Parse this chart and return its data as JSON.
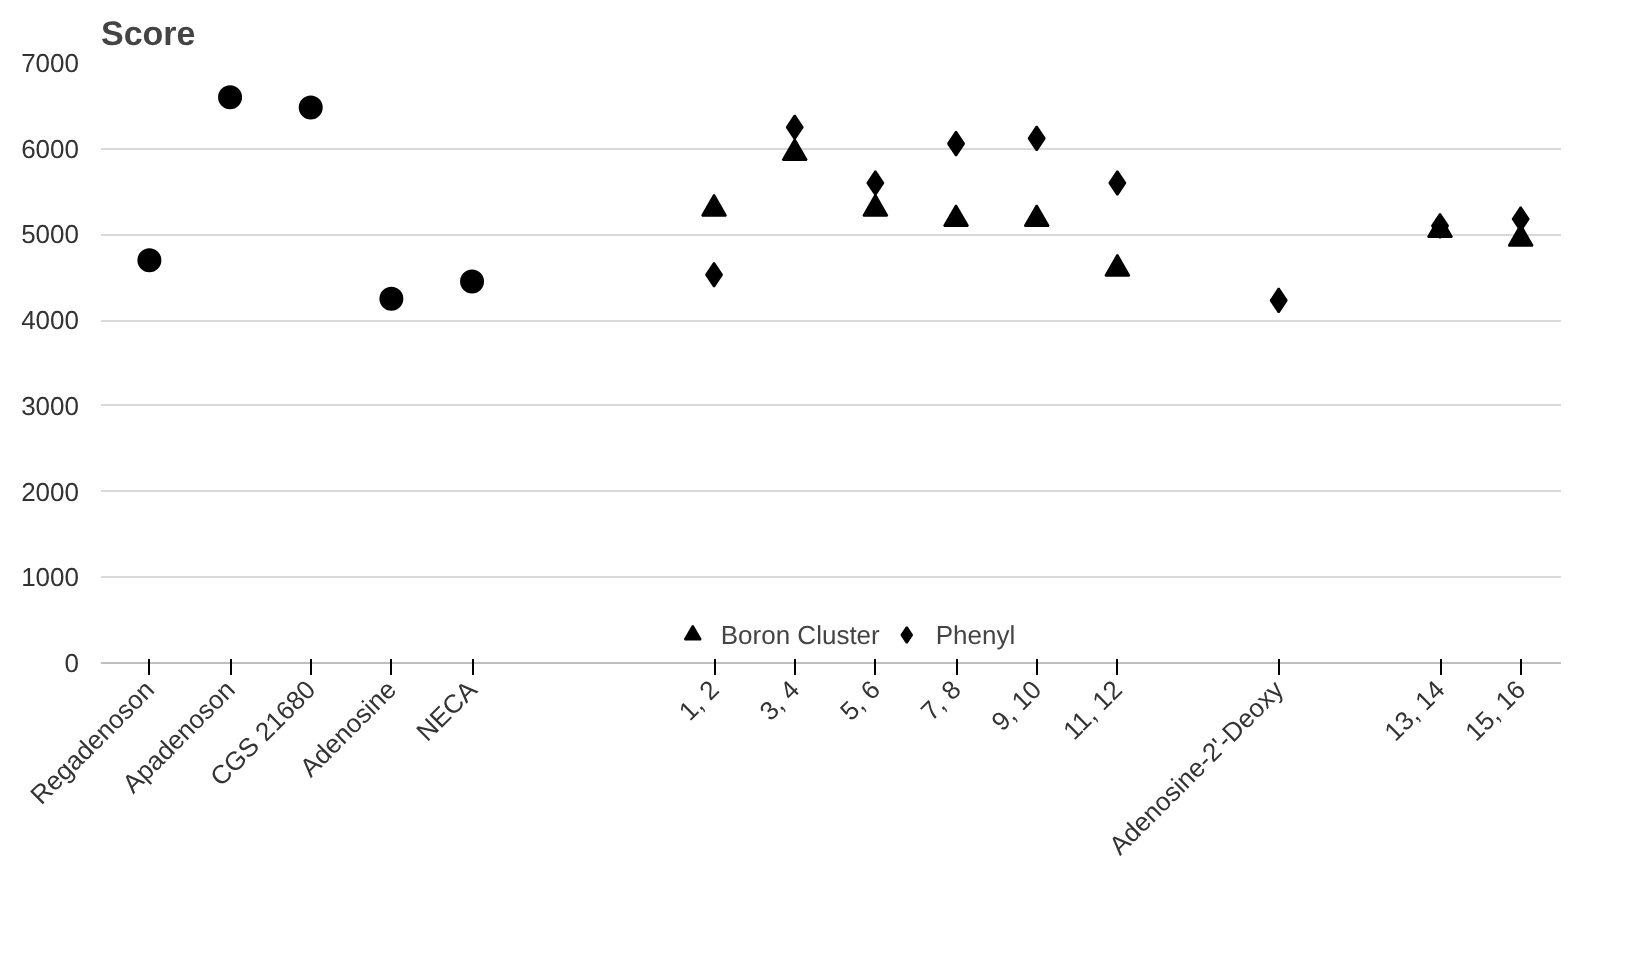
{
  "chart_data": {
    "type": "scatter",
    "title": "Score",
    "categories": [
      "Regadenoson",
      "Apadenoson",
      "CGS 21680",
      "Adenosine",
      "NECA",
      null,
      null,
      "1, 2",
      "3, 4",
      "5, 6",
      "7, 8",
      "9, 10",
      "11, 12",
      null,
      "Adenosine-2'-Deoxy",
      null,
      "13, 14",
      "15, 16"
    ],
    "series": [
      {
        "color": "#000000",
        "marker": "circle",
        "values": [
          4700,
          6600,
          6480,
          4250,
          4450,
          null,
          null,
          null,
          null,
          null,
          null,
          null,
          null,
          null,
          null,
          null,
          null,
          null
        ]
      },
      {
        "name": "Boron Cluster",
        "color": "#000000",
        "marker": "triangle",
        "values": [
          null,
          null,
          null,
          null,
          null,
          null,
          null,
          5300,
          5950,
          5300,
          5180,
          5180,
          4600,
          null,
          null,
          null,
          5050,
          4950
        ]
      },
      {
        "name": "Phenyl",
        "color": "#000000",
        "marker": "diamond",
        "values": [
          null,
          null,
          null,
          null,
          null,
          null,
          null,
          4530,
          6250,
          5600,
          6060,
          6120,
          5600,
          null,
          4230,
          null,
          5100,
          5180
        ]
      }
    ],
    "ylim": [
      0,
      7000
    ],
    "yticks": [
      0,
      1000,
      2000,
      3000,
      4000,
      5000,
      6000,
      7000
    ],
    "grid": "y",
    "legend": "bottom"
  }
}
